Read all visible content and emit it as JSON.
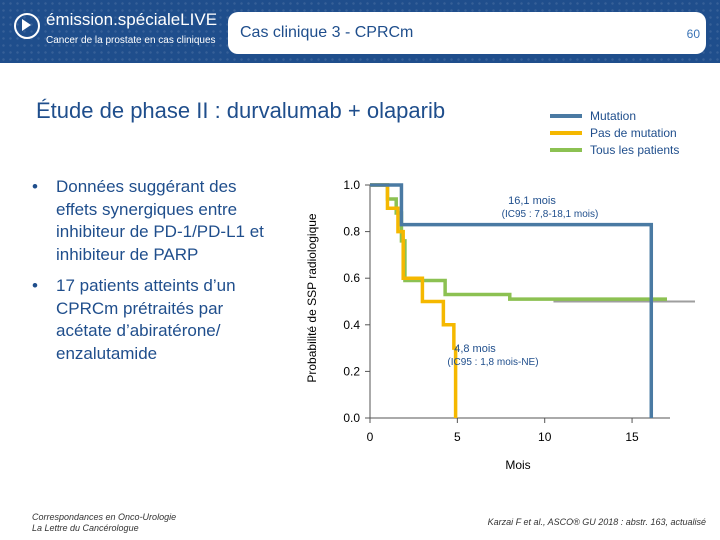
{
  "header": {
    "brand_name": "émission.spécialeLIVE",
    "brand_sub": "Cancer de la prostate en cas cliniques",
    "case_title": "Cas clinique 3 - CPRCm",
    "page_number": "60",
    "colors": {
      "background": "#1f4e8c",
      "accent": "#ffffff"
    }
  },
  "slide": {
    "title": "Étude de phase II : durvalumab + olaparib",
    "bullets": [
      "Données suggérant des effets synergiques entre inhibiteur de PD-1/PD-L1 et inhibiteur de PARP",
      "17 patients atteints d’un CPRCm prétraités par acétate d’abiratérone/ enzalutamide"
    ]
  },
  "footer": {
    "left_line1": "Correspondances en Onco-Urologie",
    "left_line2": "La Lettre du Cancérologue",
    "right": "Karzai F et al., ASCO® GU 2018 : abstr. 163, actualisé"
  },
  "chart_data": {
    "type": "line",
    "step": true,
    "title": "",
    "xlabel": "Mois",
    "ylabel": "Probabilité de SSP radiologique",
    "xlim": [
      0,
      17
    ],
    "ylim": [
      0,
      1.0
    ],
    "x_ticks": [
      0,
      5,
      10,
      15
    ],
    "y_ticks": [
      0.0,
      0.2,
      0.4,
      0.6,
      0.8,
      1.0
    ],
    "y_tick_labels": [
      "0.0",
      "0.2",
      "0.4",
      "0.6",
      "0.8",
      "1.0"
    ],
    "legend_position": "top-right",
    "grid": false,
    "series": [
      {
        "name": "Mutation",
        "color": "#4a7aa3",
        "points": [
          [
            0,
            1.0
          ],
          [
            1.8,
            1.0
          ],
          [
            1.8,
            0.83
          ],
          [
            8.0,
            0.83
          ],
          [
            8.0,
            0.83
          ],
          [
            16.1,
            0.83
          ],
          [
            16.1,
            0.0
          ]
        ]
      },
      {
        "name": "Pas de mutation",
        "color": "#f5b800",
        "points": [
          [
            0,
            1.0
          ],
          [
            1.0,
            1.0
          ],
          [
            1.0,
            0.9
          ],
          [
            1.6,
            0.9
          ],
          [
            1.6,
            0.8
          ],
          [
            1.9,
            0.8
          ],
          [
            1.9,
            0.6
          ],
          [
            3.0,
            0.6
          ],
          [
            3.0,
            0.5
          ],
          [
            4.2,
            0.5
          ],
          [
            4.2,
            0.4
          ],
          [
            4.8,
            0.4
          ],
          [
            4.8,
            0.3
          ],
          [
            4.9,
            0.3
          ],
          [
            4.9,
            0.0
          ]
        ]
      },
      {
        "name": "Tous les patients",
        "color": "#8cc152",
        "points": [
          [
            0,
            1.0
          ],
          [
            1.0,
            1.0
          ],
          [
            1.0,
            0.94
          ],
          [
            1.5,
            0.94
          ],
          [
            1.5,
            0.88
          ],
          [
            1.8,
            0.88
          ],
          [
            1.8,
            0.76
          ],
          [
            2.0,
            0.76
          ],
          [
            2.0,
            0.59
          ],
          [
            4.3,
            0.59
          ],
          [
            4.3,
            0.53
          ],
          [
            8.0,
            0.53
          ],
          [
            8.0,
            0.51
          ],
          [
            17.0,
            0.51
          ]
        ]
      }
    ],
    "censored_line": {
      "color": "#9e9e9e",
      "y": 0.5,
      "x": [
        10.5,
        17.0
      ]
    },
    "annotations": [
      {
        "line1": "16,1 mois",
        "line2": "(IC95 : 7,8-18,1 mois)",
        "x": 12.5,
        "y": 0.92
      },
      {
        "line1": "4,8 mois",
        "line2": "(IC95 : 1,8 mois-NE)",
        "x": 7.5,
        "y": 0.31
      }
    ]
  }
}
